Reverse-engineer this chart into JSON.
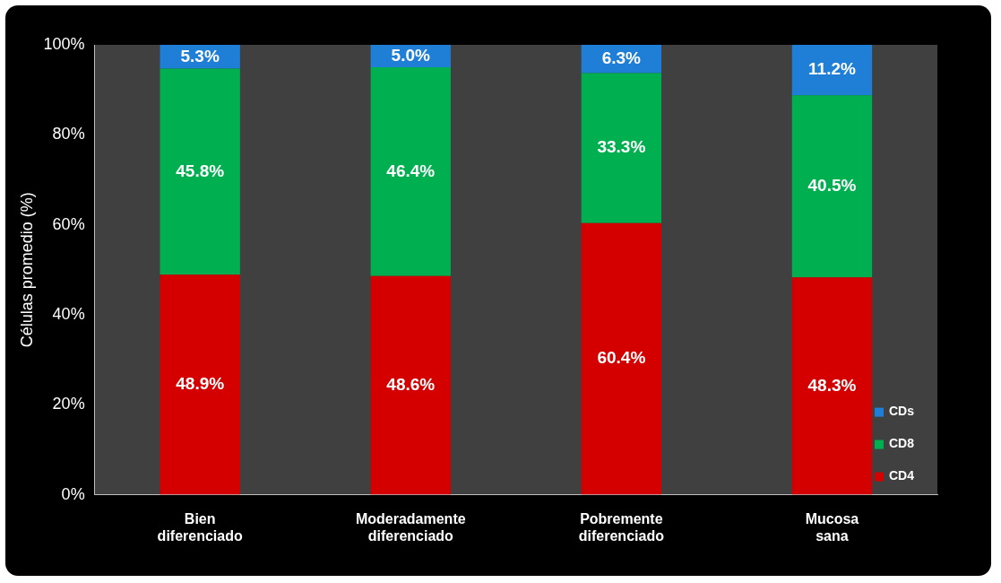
{
  "chart_data": {
    "type": "bar",
    "stacked": true,
    "ylabel": "Células promedio (%)",
    "categories": [
      "Bien diferenciado",
      "Moderadamente diferenciado",
      "Pobremente diferenciado",
      "Mucosa sana"
    ],
    "series": [
      {
        "name": "CD4",
        "color": "#d40000",
        "values": [
          48.9,
          48.6,
          60.4,
          48.3
        ],
        "value_labels": [
          "48.9%",
          "48.6%",
          "60.4%",
          "48.3%"
        ]
      },
      {
        "name": "CD8",
        "color": "#00b050",
        "values": [
          45.8,
          46.4,
          33.3,
          40.5
        ],
        "value_labels": [
          "45.8%",
          "46.4%",
          "33.3%",
          "40.5%"
        ]
      },
      {
        "name": "CDs",
        "color": "#1f7fd6",
        "values": [
          5.3,
          5.0,
          6.3,
          11.2
        ],
        "value_labels": [
          "5.3%",
          "5.0%",
          "6.3%",
          "11.2%"
        ]
      }
    ],
    "ylim": [
      0,
      100
    ],
    "yticks": [
      {
        "value": 0,
        "label": "0%"
      },
      {
        "value": 20,
        "label": "20%"
      },
      {
        "value": 40,
        "label": "40%"
      },
      {
        "value": 60,
        "label": "60%"
      },
      {
        "value": 80,
        "label": "80%"
      },
      {
        "value": 100,
        "label": "100%"
      }
    ],
    "grid": false,
    "legend": "bottom right"
  }
}
